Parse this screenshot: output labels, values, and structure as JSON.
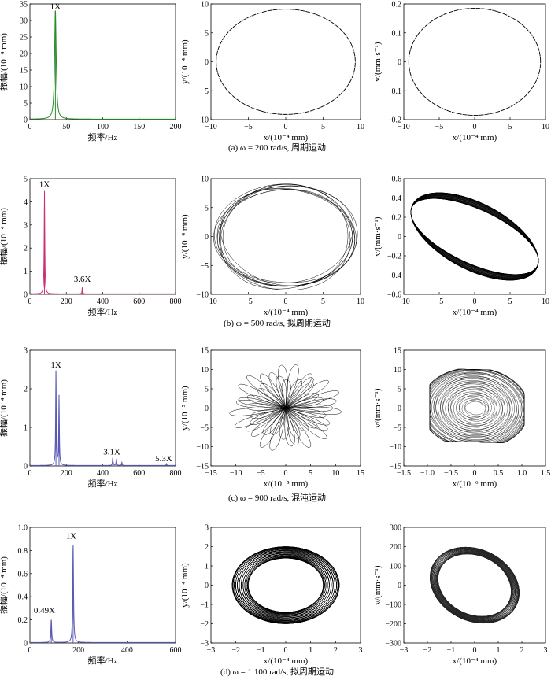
{
  "chart_data": [
    {
      "type": "line",
      "id": "a-spec",
      "color": "#2a8a2a",
      "xlim": [
        0,
        200
      ],
      "ylim": [
        0,
        35
      ],
      "xticks": [
        "0",
        "50",
        "100",
        "150",
        "200"
      ],
      "yticks": [
        "0",
        "5",
        "10",
        "15",
        "20",
        "25",
        "30",
        "35"
      ],
      "xlabel": "频率/Hz",
      "ylabel": "振幅/(10⁻⁴ mm)",
      "peaks": [
        {
          "x": 35,
          "y": 33,
          "width": 1.3
        }
      ],
      "annotations": [
        {
          "text": "1X",
          "x": 35,
          "y": 33.5
        }
      ]
    },
    {
      "type": "line",
      "id": "a-orbit",
      "color": "#000000",
      "xlim": [
        -10,
        10
      ],
      "ylim": [
        -10,
        10
      ],
      "xticks": [
        "−10",
        "−5",
        "0",
        "5",
        "10"
      ],
      "yticks": [
        "−10",
        "−5",
        "0",
        "5",
        "10"
      ],
      "xlabel": "x/(10⁻⁴ mm)",
      "ylabel": "y/(10⁻⁴ mm)",
      "orbit": {
        "kind": "ellipse",
        "a": 9.3,
        "b": 9.1
      }
    },
    {
      "type": "line",
      "id": "a-phase",
      "color": "#000000",
      "xlim": [
        -10,
        10
      ],
      "ylim": [
        -0.2,
        0.2
      ],
      "xticks": [
        "−10",
        "−5",
        "0",
        "5",
        "10"
      ],
      "yticks": [
        "−0.2",
        "−0.1",
        "0",
        "0.1",
        "0.2"
      ],
      "xlabel": "x/(10⁻⁴ mm)",
      "ylabel": "v/(mm·s⁻¹)",
      "orbit": {
        "kind": "ellipse",
        "a": 9.3,
        "b": 0.185
      }
    },
    {
      "type": "line",
      "id": "b-spec",
      "color": "#c8327a",
      "xlim": [
        0,
        800
      ],
      "ylim": [
        0,
        5
      ],
      "xticks": [
        "0",
        "200",
        "400",
        "600",
        "800"
      ],
      "yticks": [
        "0",
        "1",
        "2",
        "3",
        "4",
        "5"
      ],
      "xlabel": "频率/Hz",
      "ylabel": "振幅/(10⁻⁴ mm)",
      "peaks": [
        {
          "x": 80,
          "y": 4.45,
          "width": 2
        },
        {
          "x": 288,
          "y": 0.28,
          "width": 2
        }
      ],
      "annotations": [
        {
          "text": "1X",
          "x": 80,
          "y": 4.65
        },
        {
          "text": "3.6X",
          "x": 288,
          "y": 0.55
        }
      ]
    },
    {
      "type": "line",
      "id": "b-orbit",
      "color": "#000000",
      "xlim": [
        -10,
        10
      ],
      "ylim": [
        -10,
        10
      ],
      "xticks": [
        "−10",
        "−5",
        "0",
        "5",
        "10"
      ],
      "yticks": [
        "−10",
        "−5",
        "0",
        "5",
        "10"
      ],
      "xlabel": "x/(10⁻⁴ mm)",
      "ylabel": "y/(10⁻⁴ mm)",
      "orbit": {
        "kind": "quasi",
        "a": 9.0,
        "b": 8.6,
        "tilt": 0,
        "drift": 0.6
      }
    },
    {
      "type": "line",
      "id": "b-phase",
      "color": "#000000",
      "xlim": [
        -10,
        10
      ],
      "ylim": [
        -0.6,
        0.6
      ],
      "xticks": [
        "−10",
        "−5",
        "0",
        "5",
        "10"
      ],
      "yticks": [
        "−0.6",
        "−0.4",
        "−0.2",
        "0",
        "0.2",
        "0.4",
        "0.6"
      ],
      "xlabel": "x/(10⁻⁴ mm)",
      "ylabel": "v/(mm·s⁻¹)",
      "orbit": {
        "kind": "band",
        "a": 9.0,
        "b": 0.34,
        "shear": 0.028,
        "thick": 0.11
      }
    },
    {
      "type": "line",
      "id": "c-spec",
      "color": "#5a5ab4",
      "xlim": [
        0,
        800
      ],
      "ylim": [
        0,
        3
      ],
      "xticks": [
        "0",
        "200",
        "400",
        "600",
        "800"
      ],
      "yticks": [
        "0",
        "1",
        "2",
        "3"
      ],
      "xlabel": "频率/Hz",
      "ylabel": "振幅/(10⁻⁴ mm)",
      "peaks": [
        {
          "x": 143,
          "y": 2.45,
          "width": 2
        },
        {
          "x": 160,
          "y": 1.8,
          "width": 2
        },
        {
          "x": 455,
          "y": 0.2,
          "width": 2
        },
        {
          "x": 475,
          "y": 0.18,
          "width": 2
        },
        {
          "x": 505,
          "y": 0.08,
          "width": 2
        },
        {
          "x": 750,
          "y": 0.05,
          "width": 2
        }
      ],
      "annotations": [
        {
          "text": "1X",
          "x": 143,
          "y": 2.55
        },
        {
          "text": "3.1X",
          "x": 450,
          "y": 0.3
        },
        {
          "text": "5.3X",
          "x": 735,
          "y": 0.12
        }
      ]
    },
    {
      "type": "line",
      "id": "c-orbit",
      "color": "#000000",
      "xlim": [
        -15,
        15
      ],
      "ylim": [
        -15,
        15
      ],
      "xticks": [
        "−15",
        "−10",
        "−5",
        "0",
        "5",
        "10",
        "15"
      ],
      "yticks": [
        "−15",
        "−10",
        "−5",
        "0",
        "5",
        "10",
        "15"
      ],
      "xlabel": "x/(10⁻⁵ mm)",
      "ylabel": "y/(10⁻⁵ mm)",
      "orbit": {
        "kind": "rose",
        "r": 11.5,
        "petals": 46
      }
    },
    {
      "type": "line",
      "id": "c-phase",
      "color": "#000000",
      "xlim": [
        -1.5,
        1.5
      ],
      "ylim": [
        -15,
        15
      ],
      "xticks": [
        "−1.5",
        "−1.0",
        "−0.5",
        "0",
        "0.5",
        "1.0",
        "1.5"
      ],
      "yticks": [
        "−15",
        "−10",
        "−5",
        "0",
        "5",
        "10",
        "15"
      ],
      "xlabel": "x/(10⁻⁶ mm)",
      "ylabel": "v/(mm·s⁻¹)",
      "orbit": {
        "kind": "chaos",
        "ax": 1.05,
        "ay": 10
      }
    },
    {
      "type": "line",
      "id": "d-spec",
      "color": "#5a5ab4",
      "xlim": [
        0,
        600
      ],
      "ylim": [
        0,
        1.0
      ],
      "xticks": [
        "0",
        "200",
        "400",
        "600"
      ],
      "yticks": [
        "0",
        "0.2",
        "0.4",
        "0.6",
        "0.8",
        "1.0"
      ],
      "xlabel": "频率/Hz",
      "ylabel": "振幅/(10⁻⁴ mm)",
      "peaks": [
        {
          "x": 88,
          "y": 0.2,
          "width": 2
        },
        {
          "x": 178,
          "y": 0.85,
          "width": 2
        }
      ],
      "annotations": [
        {
          "text": "0.49X",
          "x": 60,
          "y": 0.26
        },
        {
          "text": "1X",
          "x": 170,
          "y": 0.9
        }
      ]
    },
    {
      "type": "line",
      "id": "d-orbit",
      "color": "#000000",
      "xlim": [
        -3,
        3
      ],
      "ylim": [
        -3,
        3
      ],
      "xticks": [
        "−3",
        "−2",
        "−1",
        "0",
        "1",
        "2",
        "3"
      ],
      "yticks": [
        "−3",
        "−2",
        "−1",
        "0",
        "1",
        "2",
        "3"
      ],
      "xlabel": "x/(10⁻⁴ mm)",
      "ylabel": "y/(10⁻⁴ mm)",
      "orbit": {
        "kind": "ring",
        "a": 2.15,
        "b": 2.0,
        "inner": 0.7
      }
    },
    {
      "type": "line",
      "id": "d-phase",
      "color": "#000000",
      "xlim": [
        -3,
        3
      ],
      "ylim": [
        -300,
        300
      ],
      "xticks": [
        "−3",
        "−2",
        "−1",
        "0",
        "1",
        "2",
        "3"
      ],
      "yticks": [
        "−300",
        "−200",
        "−100",
        "0",
        "100",
        "200",
        "300"
      ],
      "xlabel": "x/(10⁻⁴ mm)",
      "ylabel": "v/(mm·s⁻¹)",
      "orbit": {
        "kind": "tiltring",
        "a": 2.1,
        "b": 200,
        "rot": -0.55,
        "inner": 0.82
      }
    }
  ],
  "captions": [
    "(a) ω = 200 rad/s, 周期运动",
    "(b) ω = 500 rad/s, 拟周期运动",
    "(c) ω = 900 rad/s, 混沌运动",
    "(d) ω = 1 100 rad/s, 拟周期运动"
  ]
}
